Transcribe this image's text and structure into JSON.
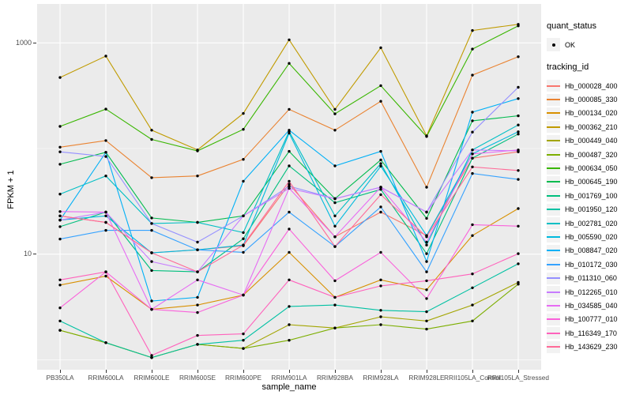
{
  "chart_data": {
    "type": "line",
    "title": "",
    "xlabel": "sample_name",
    "ylabel": "FPKM + 1",
    "y_scale": "log10",
    "y_axis_labeled_ticks": [
      "10",
      "1000"
    ],
    "y_gridlines_major": [
      10,
      1000
    ],
    "y_gridlines_minor": [
      1,
      100
    ],
    "ylim": [
      0.75,
      2200
    ],
    "legend_position": "right",
    "grid": true,
    "panel_bg": "#EBEBEB",
    "grid_color": "#FFFFFF",
    "point_color": "#000000",
    "categories": [
      "PB350LA",
      "RRIM600LA",
      "RRIM600LE",
      "RRIM600SE",
      "RRIM600PE",
      "RRIM901LA",
      "RRIM928BA",
      "RRIM928LA",
      "RRIM928LE",
      "RRII105LA_Control",
      "RRII105LA_Stressed"
    ],
    "series": [
      {
        "name": "Hb_000028_400",
        "color": "#F8766D",
        "values": [
          23,
          20,
          10.3,
          11,
          12,
          46,
          14.6,
          25,
          15,
          81,
          93
        ]
      },
      {
        "name": "Hb_000085_330",
        "color": "#EA8331",
        "values": [
          103,
          119,
          53,
          55,
          79,
          235,
          149,
          280,
          43,
          495,
          740
        ]
      },
      {
        "name": "Hb_000134_020",
        "color": "#D89000",
        "values": [
          5.1,
          6.2,
          3.0,
          3.3,
          4.1,
          10.4,
          3.9,
          5.7,
          4.6,
          15,
          27
        ]
      },
      {
        "name": "Hb_000362_210",
        "color": "#C09B00",
        "values": [
          470,
          750,
          149,
          97,
          215,
          1070,
          235,
          900,
          132,
          1310,
          1500
        ]
      },
      {
        "name": "Hb_000449_040",
        "color": "#A3A500",
        "values": [
          1.9,
          1.45,
          1.05,
          1.4,
          1.28,
          2.15,
          2.0,
          2.55,
          2.33,
          3.3,
          5.4
        ]
      },
      {
        "name": "Hb_000487_320",
        "color": "#7CAE00",
        "values": [
          1.9,
          1.45,
          1.05,
          1.4,
          1.28,
          1.53,
          2.0,
          2.15,
          1.95,
          2.33,
          5.2
        ]
      },
      {
        "name": "Hb_000634_050",
        "color": "#39B600",
        "values": [
          162,
          236,
          122,
          95,
          152,
          640,
          213,
          394,
          130,
          875,
          1450
        ]
      },
      {
        "name": "Hb_000645_190",
        "color": "#00BB4E",
        "values": [
          71,
          92,
          22,
          20,
          23,
          94,
          33.5,
          78,
          21.8,
          183,
          204
        ]
      },
      {
        "name": "Hb_001769_100",
        "color": "#00BF7D",
        "values": [
          18.2,
          25,
          7.0,
          6.8,
          14,
          68.5,
          30.7,
          41,
          10.1,
          81,
          137
        ]
      },
      {
        "name": "Hb_001950_120",
        "color": "#00C1A3",
        "values": [
          2.33,
          1.45,
          1.05,
          1.4,
          1.53,
          3.2,
          3.3,
          2.94,
          2.85,
          4.8,
          8.1
        ]
      },
      {
        "name": "Hb_002781_020",
        "color": "#00BFC4",
        "values": [
          37,
          55,
          19.5,
          20,
          16,
          145,
          23,
          72,
          12.2,
          97,
          167
        ]
      },
      {
        "name": "Hb_005590_020",
        "color": "#00BADE",
        "values": [
          21,
          23,
          10.3,
          11,
          12.2,
          140,
          18.4,
          68,
          15,
          89,
          144
        ]
      },
      {
        "name": "Hb_008847_020",
        "color": "#00B0F6",
        "values": [
          21,
          92,
          3.6,
          3.9,
          49,
          149,
          68.5,
          94,
          8.5,
          221,
          297
        ]
      },
      {
        "name": "Hb_010172_030",
        "color": "#35A2FF",
        "values": [
          13.9,
          16.8,
          16.8,
          11,
          10.4,
          25,
          11.8,
          28,
          6.8,
          58,
          51
        ]
      },
      {
        "name": "Hb_011310_060",
        "color": "#9590FF",
        "values": [
          93,
          84,
          19.5,
          13,
          23,
          44,
          33.5,
          43,
          25,
          143,
          380
        ]
      },
      {
        "name": "Hb_012265_010",
        "color": "#C77CFF",
        "values": [
          21,
          25,
          8.5,
          6.8,
          23,
          42,
          33.5,
          43,
          25,
          97,
          95
        ]
      },
      {
        "name": "Hb_034585_040",
        "color": "#E76BF3",
        "values": [
          25.3,
          25,
          3.0,
          5.7,
          4.1,
          42,
          14.6,
          43,
          13,
          89,
          97
        ]
      },
      {
        "name": "Hb_100777_010",
        "color": "#FA62DB",
        "values": [
          3.1,
          6.8,
          3.0,
          2.8,
          4.1,
          17.3,
          5.6,
          10.4,
          3.8,
          19,
          18.4
        ]
      },
      {
        "name": "Hb_116349_170",
        "color": "#FF62BC",
        "values": [
          5.7,
          6.8,
          1.1,
          1.7,
          1.76,
          5.7,
          3.9,
          5.0,
          5.6,
          6.5,
          10.1
        ]
      },
      {
        "name": "Hb_143629_230",
        "color": "#FF6A98",
        "values": [
          23,
          20,
          10.3,
          6.8,
          12.2,
          49,
          11.8,
          36.6,
          14.6,
          67,
          62
        ]
      }
    ]
  },
  "legend": {
    "quant_status_title": "quant_status",
    "quant_status_ok_label": "OK",
    "tracking_id_title": "tracking_id"
  },
  "axes": {
    "y_title": "FPKM + 1",
    "x_title": "sample_name",
    "y_tick_top": "1000",
    "y_tick_bottom": "10"
  }
}
